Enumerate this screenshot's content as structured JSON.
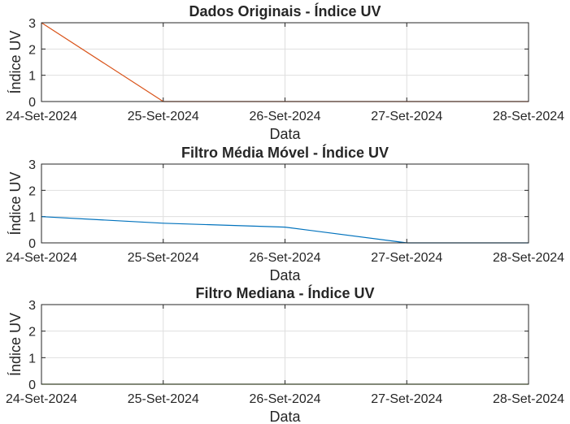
{
  "chart_data": [
    {
      "type": "line",
      "title": "Dados Originais - Índice UV",
      "xlabel": "Data",
      "ylabel": "Índice UV",
      "xlim": [
        "2024-09-24",
        "2024-09-28"
      ],
      "ylim": [
        0,
        3
      ],
      "xticks": [
        "24-Set-2024",
        "25-Set-2024",
        "26-Set-2024",
        "27-Set-2024",
        "28-Set-2024"
      ],
      "yticks": [
        "0",
        "1",
        "2",
        "3"
      ],
      "grid": true,
      "series": [
        {
          "color": "#D95319",
          "x": [
            "2024-09-24",
            "2024-09-25",
            "2024-09-26",
            "2024-09-27",
            "2024-09-28"
          ],
          "y": [
            3,
            0,
            0,
            0,
            0
          ]
        }
      ]
    },
    {
      "type": "line",
      "title": "Filtro Média Móvel - Índice UV",
      "xlabel": "Data",
      "ylabel": "Índice UV",
      "xlim": [
        "2024-09-24",
        "2024-09-28"
      ],
      "ylim": [
        0,
        3
      ],
      "xticks": [
        "24-Set-2024",
        "25-Set-2024",
        "26-Set-2024",
        "27-Set-2024",
        "28-Set-2024"
      ],
      "yticks": [
        "0",
        "1",
        "2",
        "3"
      ],
      "grid": true,
      "series": [
        {
          "color": "#0072BD",
          "x": [
            "2024-09-24",
            "2024-09-25",
            "2024-09-26",
            "2024-09-27",
            "2024-09-28"
          ],
          "y": [
            1,
            0.75,
            0.6,
            0,
            0
          ]
        }
      ]
    },
    {
      "type": "line",
      "title": "Filtro Mediana - Índice UV",
      "xlabel": "Data",
      "ylabel": "Índice UV",
      "xlim": [
        "2024-09-24",
        "2024-09-28"
      ],
      "ylim": [
        0,
        3
      ],
      "xticks": [
        "24-Set-2024",
        "25-Set-2024",
        "26-Set-2024",
        "27-Set-2024",
        "28-Set-2024"
      ],
      "yticks": [
        "0",
        "1",
        "2",
        "3"
      ],
      "grid": true,
      "series": [
        {
          "color": "#77AC30",
          "x": [
            "2024-09-24",
            "2024-09-25",
            "2024-09-26",
            "2024-09-27",
            "2024-09-28"
          ],
          "y": [
            0,
            0,
            0,
            0,
            0
          ]
        }
      ]
    }
  ]
}
